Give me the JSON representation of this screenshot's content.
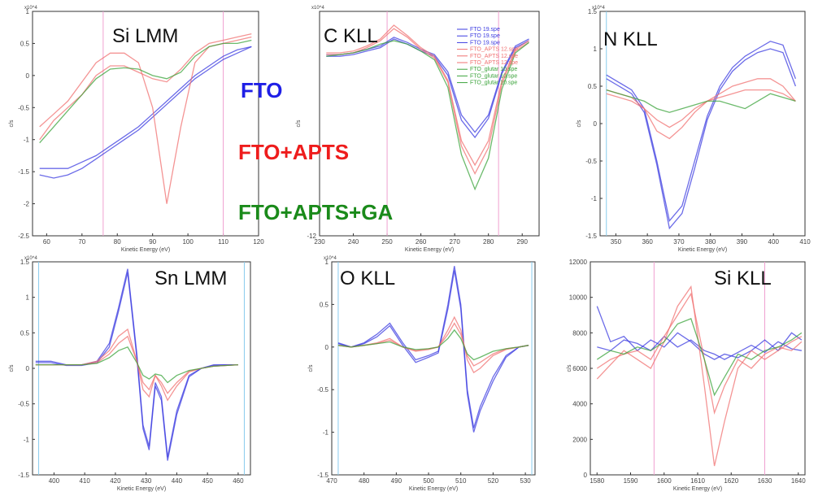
{
  "overlay_labels": [
    {
      "text": "FTO",
      "color": "#1f1fe6"
    },
    {
      "text": "FTO+APTS",
      "color": "#ee1c1c"
    },
    {
      "text": "FTO+APTS+GA",
      "color": "#1a8a1a"
    }
  ],
  "colors": {
    "FTO": "#3a3ae0",
    "FTO+APTS": "#f07070",
    "FTO+APTS+GA": "#3aa33a"
  },
  "legend": [
    {
      "label": "FTO 19.spe",
      "group": "FTO"
    },
    {
      "label": "FTO 19.spe",
      "group": "FTO"
    },
    {
      "label": "FTO 19.spe",
      "group": "FTO"
    },
    {
      "label": "FTO_APTS 12.spe",
      "group": "FTO+APTS"
    },
    {
      "label": "FTO_APTS 12.spe",
      "group": "FTO+APTS"
    },
    {
      "label": "FTO_APTS 12.spe",
      "group": "FTO+APTS"
    },
    {
      "label": "FTO_glutar 10.spe",
      "group": "FTO+APTS+GA"
    },
    {
      "label": "FTO_glutar 10.spe",
      "group": "FTO+APTS+GA"
    },
    {
      "label": "FTO_glutar 10.spe",
      "group": "FTO+APTS+GA"
    }
  ],
  "chart_data": [
    {
      "type": "line",
      "title": "Si LMM",
      "xlabel": "Kinetic Energy (eV)",
      "ylabel": "c/s",
      "ylim_note": "x10^4",
      "xlim": [
        56,
        120
      ],
      "ylim": [
        -2.5,
        1
      ],
      "xticks": [
        60,
        70,
        80,
        90,
        100,
        110,
        120
      ],
      "ytick_labels": [
        "-2.5",
        "-2",
        "-1.5",
        "-1",
        "-0.5",
        "0",
        "0.5",
        "1"
      ],
      "ytick_values": [
        -2.5,
        -2,
        -1.5,
        -1,
        -0.5,
        0,
        0.5,
        1
      ],
      "x": [
        58,
        62,
        66,
        70,
        74,
        78,
        82,
        86,
        90,
        94,
        98,
        102,
        106,
        110,
        114,
        118
      ],
      "vlines": [
        76,
        110
      ],
      "series": [
        {
          "group": "FTO",
          "values": [
            -1.45,
            -1.45,
            -1.45,
            -1.35,
            -1.25,
            -1.1,
            -0.95,
            -0.8,
            -0.6,
            -0.4,
            -0.2,
            0,
            0.15,
            0.3,
            0.4,
            0.45
          ]
        },
        {
          "group": "FTO",
          "values": [
            -1.55,
            -1.6,
            -1.55,
            -1.45,
            -1.3,
            -1.15,
            -1.0,
            -0.85,
            -0.65,
            -0.45,
            -0.25,
            -0.05,
            0.1,
            0.25,
            0.35,
            0.45
          ]
        },
        {
          "group": "FTO+APTS",
          "values": [
            -0.8,
            -0.6,
            -0.4,
            -0.1,
            0.2,
            0.35,
            0.35,
            0.2,
            -0.5,
            -2.0,
            -0.8,
            0.2,
            0.45,
            0.5,
            0.55,
            0.6
          ]
        },
        {
          "group": "FTO+APTS",
          "values": [
            -1.0,
            -0.7,
            -0.5,
            -0.3,
            0.0,
            0.15,
            0.15,
            0.05,
            -0.05,
            -0.1,
            0.1,
            0.35,
            0.5,
            0.55,
            0.6,
            0.65
          ]
        },
        {
          "group": "FTO+APTS+GA",
          "values": [
            -1.05,
            -0.8,
            -0.55,
            -0.3,
            -0.05,
            0.1,
            0.12,
            0.1,
            0.0,
            -0.05,
            0.05,
            0.3,
            0.45,
            0.5,
            0.5,
            0.55
          ]
        }
      ]
    },
    {
      "type": "line",
      "title": "C KLL",
      "xlabel": "Kinetic Energy (eV)",
      "ylabel": "c/s",
      "ylim_note": "x10^4",
      "xlim": [
        230,
        295
      ],
      "ylim": [
        -12,
        1
      ],
      "xticks": [
        230,
        240,
        250,
        260,
        270,
        280,
        290
      ],
      "ytick_labels": [
        "-12"
      ],
      "ytick_values": [
        -12
      ],
      "x": [
        232,
        236,
        240,
        244,
        248,
        252,
        256,
        260,
        264,
        268,
        272,
        276,
        280,
        284,
        288,
        292
      ],
      "vlines": [
        250,
        283
      ],
      "series": [
        {
          "group": "FTO",
          "values": [
            -1.5,
            -1.5,
            -1.4,
            -1.2,
            -1.0,
            -0.5,
            -0.8,
            -1.2,
            -1.5,
            -2.5,
            -5.0,
            -6.0,
            -5.0,
            -2.5,
            -1.0,
            -0.6
          ]
        },
        {
          "group": "FTO",
          "values": [
            -1.6,
            -1.6,
            -1.5,
            -1.3,
            -1.1,
            -0.6,
            -0.9,
            -1.3,
            -1.6,
            -2.7,
            -5.3,
            -6.3,
            -5.2,
            -2.6,
            -1.1,
            -0.7
          ]
        },
        {
          "group": "FTO+APTS",
          "values": [
            -1.4,
            -1.4,
            -1.3,
            -1.0,
            -0.6,
            0.2,
            -0.4,
            -1.1,
            -1.6,
            -3.0,
            -6.5,
            -7.9,
            -6.5,
            -3.0,
            -1.2,
            -0.7
          ]
        },
        {
          "group": "FTO+APTS",
          "values": [
            -1.5,
            -1.5,
            -1.4,
            -1.1,
            -0.7,
            0.0,
            -0.5,
            -1.2,
            -1.7,
            -3.1,
            -6.8,
            -8.4,
            -6.9,
            -3.2,
            -1.3,
            -0.8
          ]
        },
        {
          "group": "FTO+APTS+GA",
          "values": [
            -1.6,
            -1.5,
            -1.4,
            -1.2,
            -0.9,
            -0.7,
            -0.9,
            -1.3,
            -1.8,
            -3.4,
            -7.3,
            -9.3,
            -7.5,
            -3.5,
            -1.4,
            -0.8
          ]
        }
      ]
    },
    {
      "type": "line",
      "title": "N KLL",
      "xlabel": "Kinetic Energy (eV)",
      "ylabel": "c/s",
      "ylim_note": "x10^4",
      "xlim": [
        345,
        410
      ],
      "ylim": [
        -1.5,
        1.5
      ],
      "xticks": [
        350,
        360,
        370,
        380,
        390,
        400,
        410
      ],
      "ytick_labels": [
        "-1.5",
        "-1",
        "-0.5",
        "0",
        "0.5",
        "1",
        "1.5"
      ],
      "ytick_values": [
        -1.5,
        -1,
        -0.5,
        0,
        0.5,
        1,
        1.5
      ],
      "x": [
        347,
        351,
        355,
        359,
        363,
        367,
        371,
        375,
        379,
        383,
        387,
        391,
        395,
        399,
        403,
        407
      ],
      "vlines": [
        347
      ],
      "series": [
        {
          "group": "FTO",
          "values": [
            0.65,
            0.55,
            0.45,
            0.2,
            -0.5,
            -1.3,
            -1.1,
            -0.5,
            0.1,
            0.5,
            0.75,
            0.9,
            1.0,
            1.1,
            1.05,
            0.6
          ]
        },
        {
          "group": "FTO",
          "values": [
            0.6,
            0.5,
            0.4,
            0.15,
            -0.55,
            -1.4,
            -1.2,
            -0.6,
            0.05,
            0.45,
            0.7,
            0.85,
            0.95,
            1.0,
            0.95,
            0.5
          ]
        },
        {
          "group": "FTO+APTS",
          "values": [
            0.45,
            0.4,
            0.35,
            0.2,
            -0.1,
            -0.2,
            -0.05,
            0.15,
            0.3,
            0.4,
            0.5,
            0.55,
            0.6,
            0.6,
            0.5,
            0.3
          ]
        },
        {
          "group": "FTO+APTS",
          "values": [
            0.4,
            0.35,
            0.3,
            0.2,
            0.05,
            -0.05,
            0.05,
            0.2,
            0.3,
            0.35,
            0.4,
            0.45,
            0.45,
            0.45,
            0.4,
            0.3
          ]
        },
        {
          "group": "FTO+APTS+GA",
          "values": [
            0.45,
            0.4,
            0.35,
            0.3,
            0.2,
            0.15,
            0.2,
            0.25,
            0.3,
            0.3,
            0.25,
            0.2,
            0.3,
            0.4,
            0.35,
            0.3
          ]
        }
      ]
    },
    {
      "type": "line",
      "title": "Sn LMM",
      "xlabel": "Kinetic Energy (eV)",
      "ylabel": "c/s",
      "ylim_note": "x10^4",
      "xlim": [
        393,
        464
      ],
      "ylim": [
        -1.5,
        1.5
      ],
      "xticks": [
        400,
        410,
        420,
        430,
        440,
        450,
        460
      ],
      "ytick_labels": [
        "-1.5",
        "-1",
        "-0.5",
        "0",
        "0.5",
        "1",
        "1.5"
      ],
      "ytick_values": [
        -1.5,
        -1,
        -0.5,
        0,
        0.5,
        1,
        1.5
      ],
      "x": [
        394,
        399,
        404,
        409,
        414,
        418,
        421,
        424,
        427,
        429,
        431,
        433,
        435,
        437,
        440,
        444,
        448,
        452,
        456,
        460
      ],
      "vlines": [
        395,
        462
      ],
      "series": [
        {
          "group": "FTO",
          "values": [
            0.1,
            0.1,
            0.05,
            0.05,
            0.1,
            0.35,
            0.85,
            1.4,
            0.2,
            -0.8,
            -1.1,
            -0.2,
            -0.4,
            -1.25,
            -0.6,
            -0.1,
            0.0,
            0.05,
            0.05,
            0.05
          ]
        },
        {
          "group": "FTO",
          "values": [
            0.08,
            0.08,
            0.04,
            0.04,
            0.08,
            0.3,
            0.8,
            1.35,
            0.15,
            -0.85,
            -1.15,
            -0.25,
            -0.45,
            -1.3,
            -0.65,
            -0.12,
            0.0,
            0.04,
            0.05,
            0.05
          ]
        },
        {
          "group": "FTO+APTS",
          "values": [
            0.05,
            0.05,
            0.05,
            0.05,
            0.1,
            0.25,
            0.45,
            0.55,
            0.1,
            -0.3,
            -0.4,
            -0.1,
            -0.25,
            -0.45,
            -0.25,
            -0.05,
            0.0,
            0.03,
            0.04,
            0.05
          ]
        },
        {
          "group": "FTO+APTS",
          "values": [
            0.05,
            0.05,
            0.05,
            0.05,
            0.08,
            0.2,
            0.35,
            0.45,
            0.1,
            -0.2,
            -0.3,
            -0.1,
            -0.2,
            -0.35,
            -0.2,
            -0.04,
            0.0,
            0.03,
            0.04,
            0.05
          ]
        },
        {
          "group": "FTO+APTS+GA",
          "values": [
            0.05,
            0.05,
            0.05,
            0.05,
            0.07,
            0.15,
            0.25,
            0.3,
            0.08,
            -0.1,
            -0.15,
            -0.08,
            -0.1,
            -0.2,
            -0.1,
            -0.03,
            0.0,
            0.03,
            0.04,
            0.05
          ]
        }
      ]
    },
    {
      "type": "line",
      "title": "O KLL",
      "xlabel": "Kinetic Energy (eV)",
      "ylabel": "c/s",
      "ylim_note": "x10^4",
      "xlim": [
        470,
        533
      ],
      "ylim": [
        -1.5,
        1
      ],
      "xticks": [
        470,
        480,
        490,
        500,
        510,
        520,
        530
      ],
      "ytick_labels": [
        "-1.5",
        "-1",
        "-0.5",
        "0",
        "0.5",
        "1"
      ],
      "ytick_values": [
        -1.5,
        -1,
        -0.5,
        0,
        0.5,
        1
      ],
      "x": [
        472,
        476,
        480,
        484,
        488,
        492,
        496,
        500,
        503,
        506,
        508,
        510,
        512,
        514,
        516,
        520,
        524,
        528,
        531
      ],
      "vlines": [
        472,
        532
      ],
      "series": [
        {
          "group": "FTO",
          "values": [
            0.05,
            0.0,
            0.05,
            0.15,
            0.28,
            0.05,
            -0.15,
            -0.1,
            -0.05,
            0.5,
            0.95,
            0.5,
            -0.5,
            -0.95,
            -0.7,
            -0.35,
            -0.1,
            0.0,
            0.02
          ]
        },
        {
          "group": "FTO",
          "values": [
            0.04,
            0.0,
            0.04,
            0.12,
            0.25,
            0.02,
            -0.18,
            -0.12,
            -0.07,
            0.45,
            0.9,
            0.45,
            -0.55,
            -1.0,
            -0.75,
            -0.4,
            -0.12,
            0.0,
            0.02
          ]
        },
        {
          "group": "FTO+APTS",
          "values": [
            0.02,
            0.0,
            0.02,
            0.05,
            0.1,
            0.0,
            -0.05,
            -0.03,
            0.0,
            0.2,
            0.35,
            0.2,
            -0.15,
            -0.3,
            -0.25,
            -0.1,
            -0.03,
            0.0,
            0.02
          ]
        },
        {
          "group": "FTO+APTS",
          "values": [
            0.02,
            0.0,
            0.02,
            0.04,
            0.08,
            0.0,
            -0.04,
            -0.02,
            0.0,
            0.15,
            0.28,
            0.15,
            -0.1,
            -0.22,
            -0.18,
            -0.08,
            -0.02,
            0.0,
            0.02
          ]
        },
        {
          "group": "FTO+APTS+GA",
          "values": [
            0.02,
            0.0,
            0.02,
            0.04,
            0.06,
            0.0,
            -0.03,
            -0.02,
            0.0,
            0.1,
            0.2,
            0.1,
            -0.08,
            -0.15,
            -0.12,
            -0.05,
            -0.02,
            0.0,
            0.02
          ]
        }
      ]
    },
    {
      "type": "line",
      "title": "Si KLL",
      "xlabel": "Kinetic Energy (eV)",
      "ylabel": "c/s",
      "ylim_note": "",
      "xlim": [
        1578,
        1642
      ],
      "ylim": [
        0,
        12000
      ],
      "xticks": [
        1580,
        1590,
        1600,
        1610,
        1620,
        1630,
        1640
      ],
      "ytick_labels": [
        "0",
        "2000",
        "4000",
        "6000",
        "8000",
        "10000",
        "12000"
      ],
      "ytick_values": [
        0,
        2000,
        4000,
        6000,
        8000,
        10000,
        12000
      ],
      "x": [
        1580,
        1584,
        1588,
        1592,
        1596,
        1600,
        1604,
        1608,
        1612,
        1615,
        1618,
        1622,
        1626,
        1630,
        1634,
        1638,
        1641
      ],
      "vlines": [
        1597,
        1630
      ],
      "series": [
        {
          "group": "FTO",
          "values": [
            9500,
            7500,
            7800,
            7000,
            7600,
            7200,
            8000,
            7500,
            6800,
            6500,
            6800,
            6600,
            7000,
            7600,
            7000,
            8000,
            7600
          ]
        },
        {
          "group": "FTO",
          "values": [
            7200,
            7000,
            7600,
            7400,
            7000,
            7800,
            7200,
            7600,
            7000,
            6800,
            6500,
            6900,
            7300,
            6900,
            7500,
            7100,
            7000
          ]
        },
        {
          "group": "FTO+APTS",
          "values": [
            5400,
            6200,
            7000,
            6500,
            6000,
            7500,
            9500,
            10600,
            5000,
            500,
            3000,
            6000,
            7000,
            6500,
            7000,
            7500,
            7800
          ]
        },
        {
          "group": "FTO+APTS",
          "values": [
            6000,
            6500,
            6800,
            7000,
            6500,
            7800,
            9000,
            10200,
            6500,
            3500,
            5000,
            6500,
            6000,
            6800,
            7200,
            7000,
            7500
          ]
        },
        {
          "group": "FTO+APTS+GA",
          "values": [
            6500,
            7000,
            6800,
            7200,
            7000,
            7500,
            8500,
            8800,
            6500,
            4500,
            5500,
            6800,
            6500,
            7000,
            7200,
            7600,
            8000
          ]
        }
      ]
    }
  ]
}
